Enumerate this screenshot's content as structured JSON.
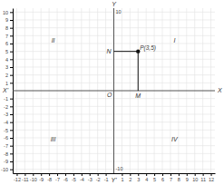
{
  "chart_data": {
    "type": "scatter",
    "x": [
      3
    ],
    "values": [
      5
    ],
    "value_labels": [
      "P(3,5)"
    ],
    "color": "#111111",
    "xlim": [
      -12.5,
      12.5
    ],
    "ylim": [
      -10.5,
      10.5
    ],
    "xticks": [
      -12,
      -11,
      -10,
      -9,
      -8,
      -7,
      -6,
      -5,
      -4,
      -3,
      -2,
      -1,
      1,
      2,
      3,
      4,
      5,
      6,
      7,
      8,
      9,
      10,
      11,
      12
    ],
    "yticks": [
      -10,
      -9,
      -8,
      -7,
      -6,
      -5,
      -4,
      -3,
      -2,
      -1,
      1,
      2,
      3,
      4,
      5,
      6,
      7,
      8,
      9,
      10
    ],
    "grid": true,
    "annotations": {
      "origin": "O",
      "x_axis_ends": [
        "X'",
        "X"
      ],
      "y_axis_ends": [
        "Y'",
        "Y"
      ],
      "quadrants": [
        "I",
        "II",
        "III",
        "IV"
      ],
      "x_foot": "M",
      "y_foot": "N"
    }
  }
}
